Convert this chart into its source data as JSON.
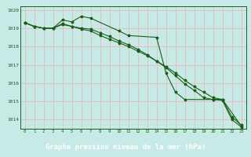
{
  "title": "Graphe pression niveau de la mer (hPa)",
  "background_color": "#c8eae6",
  "label_bg_color": "#2d6e2d",
  "label_text_color": "#ffffff",
  "grid_color": "#e8b8b8",
  "line_color": "#1a5e1a",
  "series1": {
    "x": [
      0,
      1,
      2,
      3,
      4,
      5,
      6,
      7,
      10,
      11,
      14,
      15,
      16,
      17,
      20,
      21,
      23
    ],
    "y": [
      1019.3,
      1019.1,
      1019.0,
      1019.0,
      1019.45,
      1019.35,
      1019.65,
      1019.55,
      1018.85,
      1018.6,
      1018.5,
      1016.55,
      1015.5,
      1015.1,
      1015.1,
      1015.1,
      1013.65
    ]
  },
  "series2": {
    "x": [
      0,
      1,
      2,
      3,
      4,
      5,
      6,
      7,
      8,
      9,
      10,
      11,
      12,
      13,
      14,
      15,
      16,
      17,
      18,
      19,
      20,
      21,
      22,
      23
    ],
    "y": [
      1019.3,
      1019.1,
      1019.0,
      1019.0,
      1019.25,
      1019.1,
      1018.95,
      1018.85,
      1018.6,
      1018.4,
      1018.2,
      1018.0,
      1017.75,
      1017.5,
      1017.2,
      1016.9,
      1016.55,
      1016.15,
      1015.8,
      1015.5,
      1015.2,
      1015.1,
      1014.15,
      1013.7
    ]
  },
  "series3": {
    "x": [
      0,
      1,
      2,
      3,
      4,
      5,
      6,
      7,
      8,
      9,
      10,
      11,
      12,
      13,
      14,
      15,
      16,
      17,
      18,
      19,
      20,
      21,
      22,
      23
    ],
    "y": [
      1019.3,
      1019.1,
      1019.0,
      1019.0,
      1019.2,
      1019.1,
      1019.0,
      1018.95,
      1018.75,
      1018.55,
      1018.3,
      1018.1,
      1017.85,
      1017.55,
      1017.2,
      1016.85,
      1016.4,
      1015.95,
      1015.6,
      1015.2,
      1015.1,
      1015.05,
      1014.0,
      1013.6
    ]
  },
  "ylim": [
    1013.5,
    1020.2
  ],
  "yticks": [
    1014,
    1015,
    1016,
    1017,
    1018,
    1019,
    1020
  ],
  "xlim": [
    -0.5,
    23.5
  ],
  "xticks": [
    0,
    1,
    2,
    3,
    4,
    5,
    6,
    7,
    8,
    9,
    10,
    11,
    12,
    13,
    14,
    15,
    16,
    17,
    18,
    19,
    20,
    21,
    22,
    23
  ]
}
